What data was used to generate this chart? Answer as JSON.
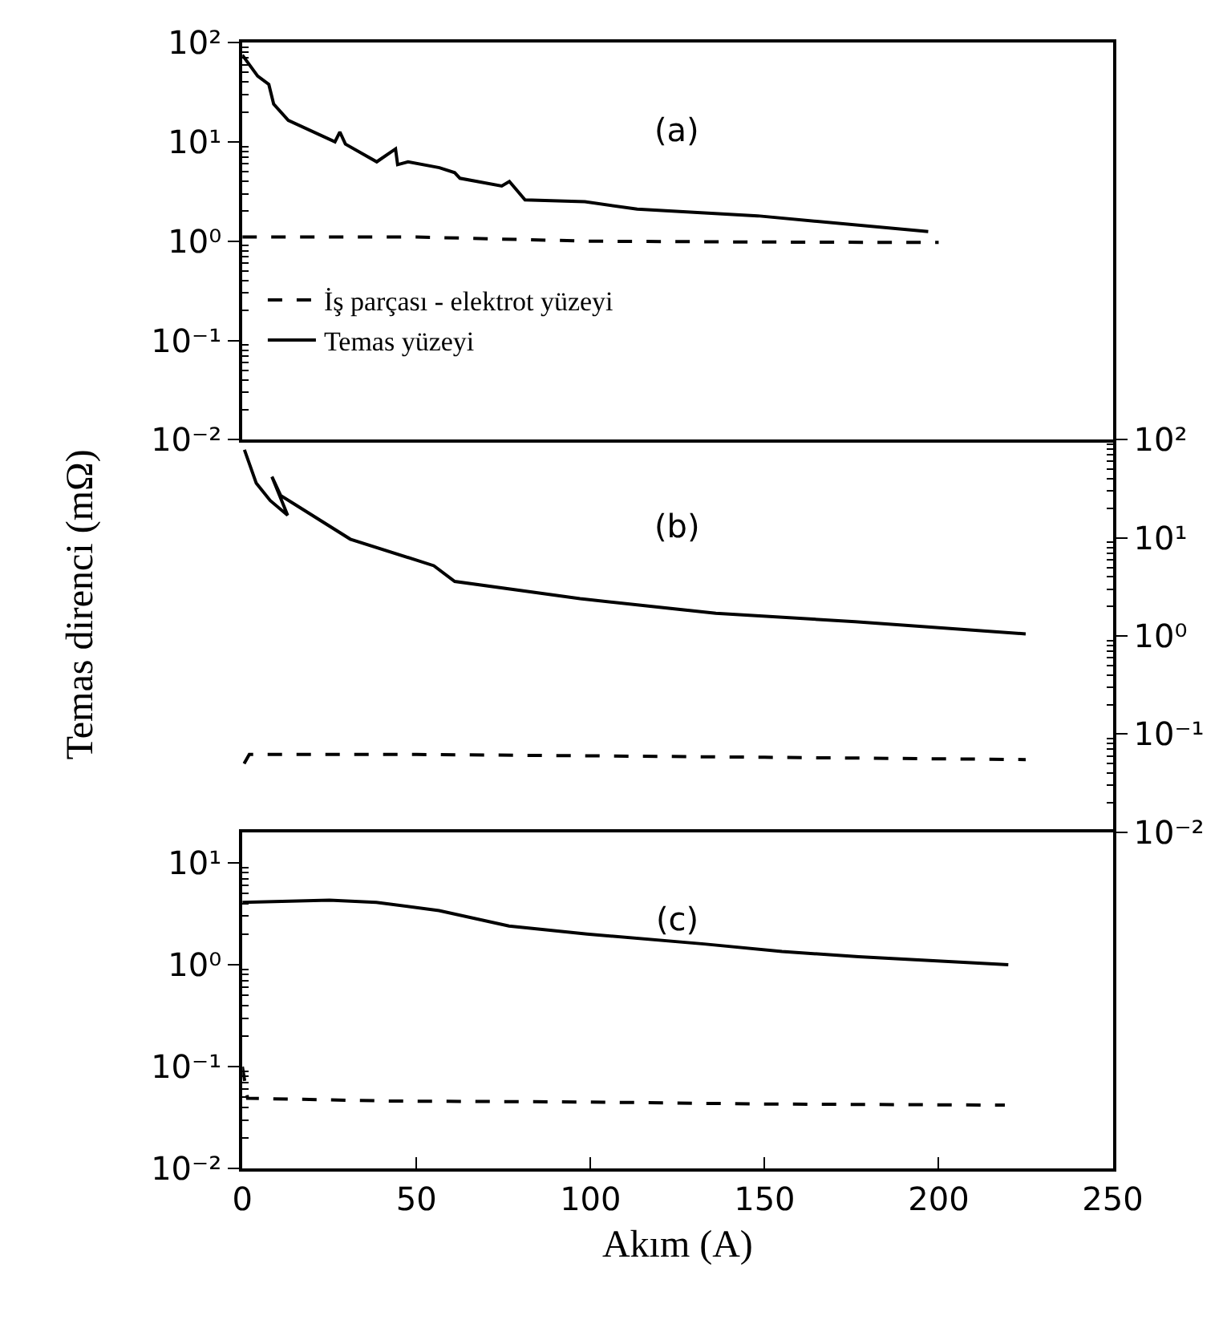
{
  "chart_data": [
    {
      "type": "line",
      "annotations": [
        "(a)"
      ],
      "xlim": [
        0,
        250
      ],
      "ylim": [
        0.01,
        100
      ],
      "log": true,
      "tick_labels": "y",
      "legend": "left",
      "yticks": [
        {
          "value": 0.01,
          "label": "10⁻²"
        },
        {
          "value": 0.1,
          "label": "10⁻¹"
        },
        {
          "value": 1,
          "label": "10⁰"
        },
        {
          "value": 10,
          "label": "10¹"
        },
        {
          "value": 100,
          "label": "10²"
        }
      ],
      "series": [
        {
          "name": "İş parçası - elektrot yüzeyi",
          "color": "#000000",
          "line_style": "dashed",
          "x": [
            0,
            50,
            100,
            150,
            200
          ],
          "values": [
            1.1,
            1.1,
            1.0,
            0.98,
            0.97
          ]
        },
        {
          "name": "Temas yüzeyi",
          "color": "#000000",
          "line_style": "solid",
          "x": [
            0,
            4.4,
            7.6,
            9,
            13.2,
            26.6,
            28,
            29.6,
            38.6,
            44,
            44.6,
            47.6,
            56.6,
            61,
            62.5,
            74.5,
            76.7,
            81.2,
            98.4,
            113.4,
            148,
            197
          ],
          "values": [
            75,
            46,
            38,
            24,
            16.5,
            10,
            12.6,
            9.5,
            6.3,
            8.5,
            5.9,
            6.3,
            5.5,
            4.9,
            4.3,
            3.6,
            4.0,
            2.6,
            2.5,
            2.1,
            1.8,
            1.25
          ]
        }
      ]
    },
    {
      "type": "line",
      "annotations": [
        "(b)"
      ],
      "xlim": [
        0,
        250
      ],
      "y2lim": [
        0.01,
        100
      ],
      "log": "y2",
      "tick_labels": "y",
      "ylabel": "Temas direnci (mΩ)",
      "y2ticks": [
        {
          "value": 0.01,
          "label": "10⁻²"
        },
        {
          "value": 0.1,
          "label": "10⁻¹"
        },
        {
          "value": 1,
          "label": "10⁰"
        },
        {
          "value": 10,
          "label": "10¹"
        },
        {
          "value": 100,
          "label": "10²"
        }
      ],
      "series": [
        {
          "color": "#000000",
          "line_style": "dashed",
          "axis": "y2",
          "x": [
            0.5,
            2,
            50,
            100,
            150,
            200,
            225
          ],
          "values": [
            0.05,
            0.062,
            0.062,
            0.06,
            0.058,
            0.056,
            0.055
          ]
        },
        {
          "color": "#000000",
          "line_style": "solid",
          "axis": "y2",
          "x": [
            0.6,
            4,
            8,
            13,
            8.5,
            11,
            15,
            31,
            55,
            61,
            97,
            136,
            176,
            225
          ],
          "values": [
            79,
            36,
            24,
            17,
            42,
            27,
            22,
            9.7,
            5.2,
            3.6,
            2.4,
            1.7,
            1.4,
            1.05
          ]
        }
      ]
    },
    {
      "type": "line",
      "annotations": [
        "(c)"
      ],
      "xlim": [
        0,
        250
      ],
      "ylim": [
        0.01,
        20
      ],
      "log": true,
      "xlabel": "Akım (A)",
      "xticks": [
        0,
        50,
        100,
        150,
        200,
        250
      ],
      "yticks": [
        {
          "value": 0.01,
          "label": "10⁻²"
        },
        {
          "value": 0.1,
          "label": "10⁻¹"
        },
        {
          "value": 1,
          "label": "10⁰"
        },
        {
          "value": 10,
          "label": "10¹"
        }
      ],
      "series": [
        {
          "color": "#000000",
          "line_style": "dashed",
          "x": [
            0,
            1.5,
            43,
            100,
            150,
            219
          ],
          "values": [
            0.1,
            0.049,
            0.046,
            0.045,
            0.043,
            0.042
          ]
        },
        {
          "color": "#000000",
          "line_style": "solid",
          "x": [
            0,
            25,
            38.5,
            56.5,
            76.6,
            99,
            132.6,
            155,
            177,
            220
          ],
          "values": [
            4.1,
            4.3,
            4.1,
            3.4,
            2.4,
            2.0,
            1.6,
            1.35,
            1.2,
            1.0
          ]
        }
      ]
    }
  ]
}
